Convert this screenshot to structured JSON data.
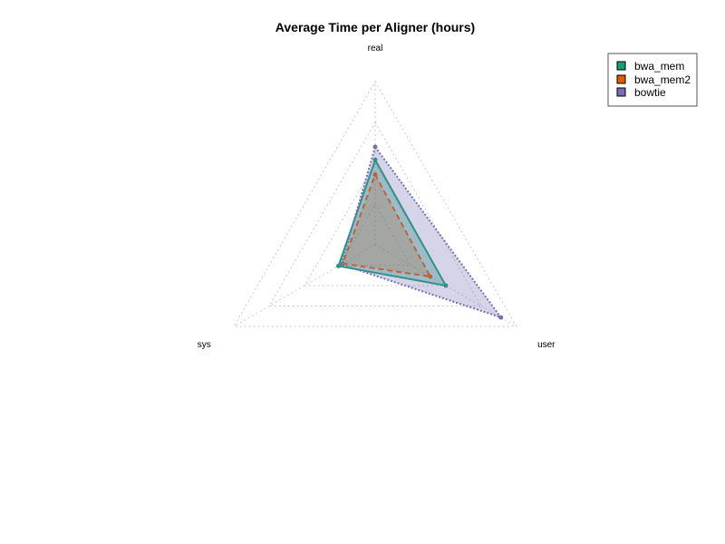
{
  "chart_data": {
    "type": "radar",
    "title": "Average Time per Aligner (hours)",
    "axes": [
      "real",
      "user",
      "sys"
    ],
    "rmax": 1.0,
    "grid_levels": 4,
    "grid": true,
    "legend_position": "top-right",
    "series": [
      {
        "name": "bwa_mem",
        "values": [
          0.52,
          0.5,
          0.26
        ],
        "color": "#1b9e77",
        "fill": "#1b9e77",
        "fill_opacity": 0.35,
        "line": "solid"
      },
      {
        "name": "bwa_mem2",
        "values": [
          0.43,
          0.39,
          0.23
        ],
        "color": "#d95f02",
        "fill": "#d95f02",
        "fill_opacity": 0.25,
        "line": "dashed"
      },
      {
        "name": "bowtie",
        "values": [
          0.6,
          0.89,
          0.24
        ],
        "color": "#7570b3",
        "fill": "#7570b3",
        "fill_opacity": 0.3,
        "line": "dotted"
      }
    ]
  }
}
